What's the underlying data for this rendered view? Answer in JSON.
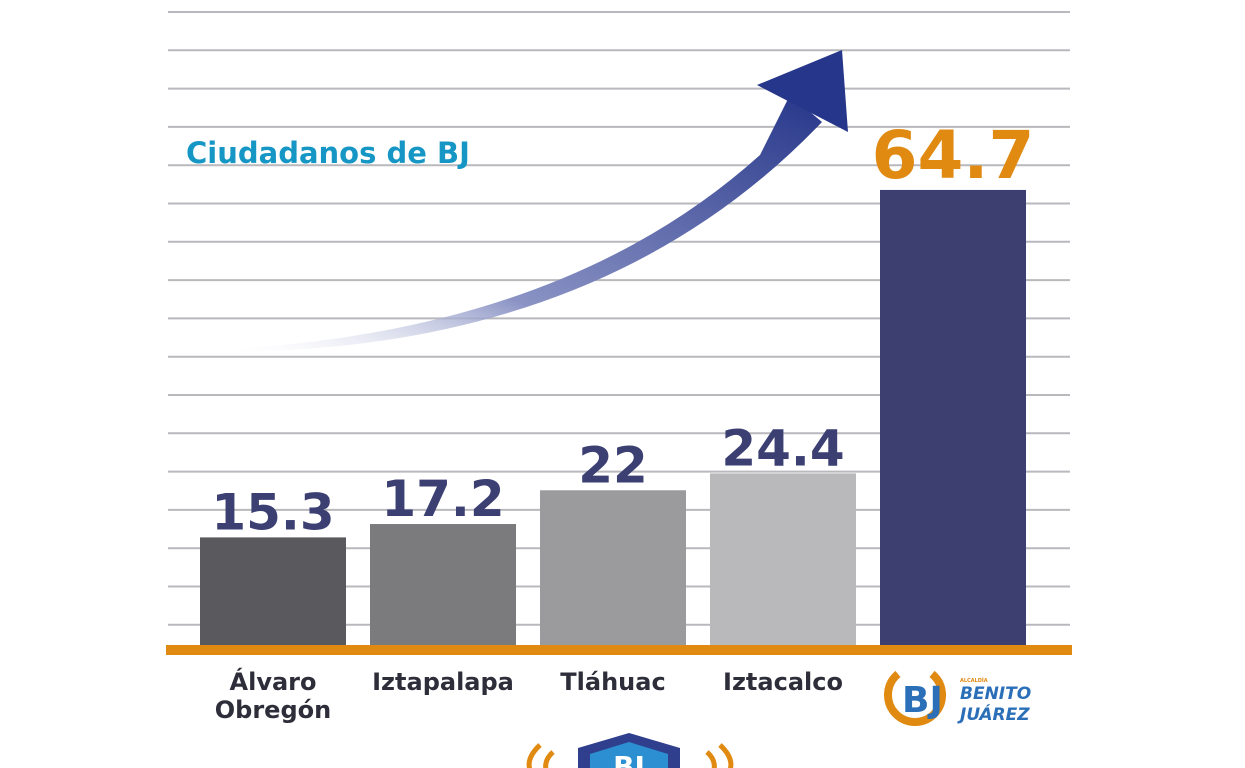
{
  "chart_data": {
    "type": "bar",
    "title": "Ciudadanos de BJ",
    "categories": [
      "Álvaro Obregón",
      "Iztapalapa",
      "Tláhuac",
      "Iztacalco",
      "BENITO JUÁREZ"
    ],
    "category_display": [
      [
        "Álvaro",
        "Obregón"
      ],
      [
        "Iztapalapa"
      ],
      [
        "Tláhuac"
      ],
      [
        "Iztacalco"
      ],
      []
    ],
    "values": [
      15.3,
      17.2,
      22,
      24.4,
      64.7
    ],
    "value_labels": [
      "15.3",
      "17.2",
      "22",
      "24.4",
      "64.7"
    ],
    "ylim": [
      0,
      90
    ],
    "grid": true,
    "bar_colors": [
      "#5a5a5e",
      "#7b7b7e",
      "#9b9b9e",
      "#b9b9bb",
      "#3d3f70"
    ],
    "highlight_index": 4,
    "highlight_color": "#e08a12",
    "value_color": "#3b3f72",
    "baseline_color": "#e08a12",
    "arrow_color": "#2b3a8a"
  },
  "logo": {
    "small_text": "ALCALDÍA",
    "line1": "BENITO",
    "line2": "JUÁREZ",
    "mark": "BJ"
  },
  "bottom_badge": {
    "text": "BJ"
  }
}
